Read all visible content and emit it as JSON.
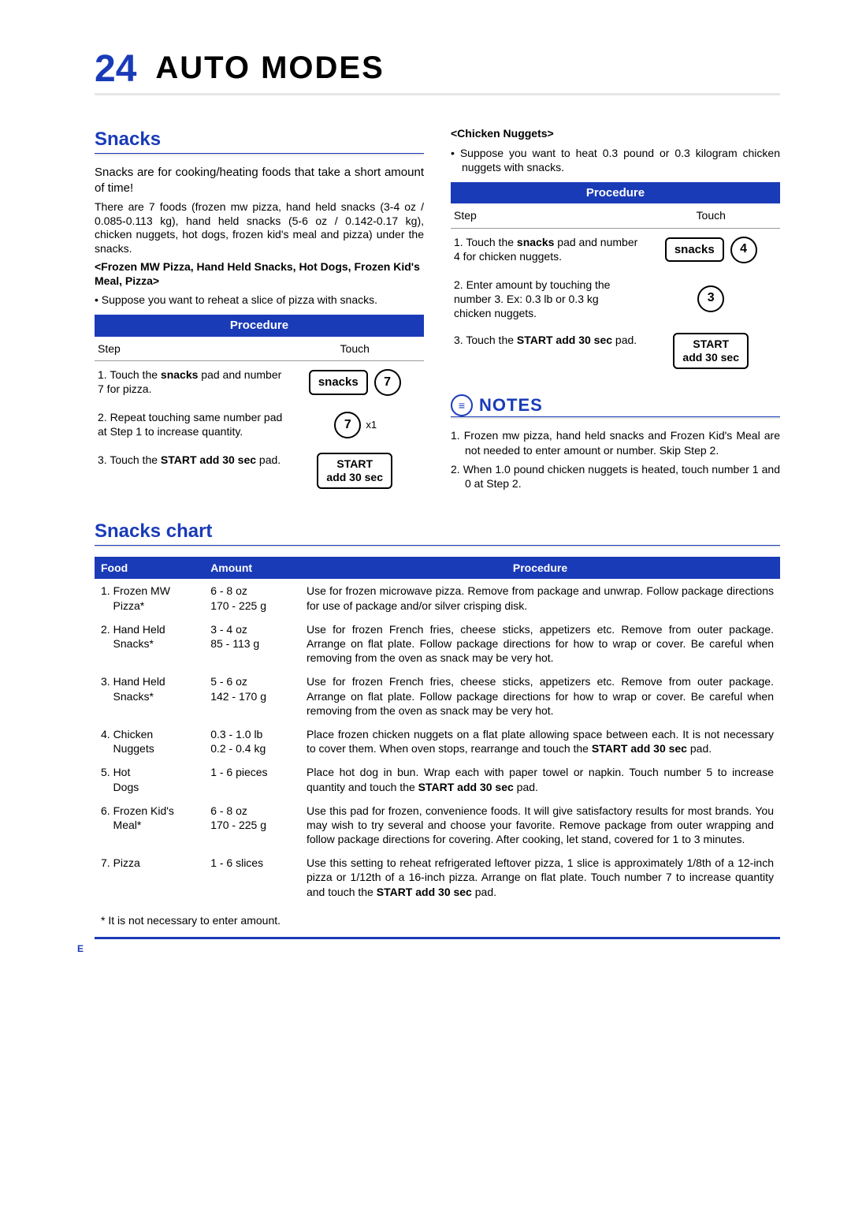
{
  "page": {
    "num": "24",
    "title": "AUTO MODES",
    "side_marker": "E"
  },
  "snacks": {
    "heading": "Snacks",
    "intro1": "Snacks are for cooking/heating foods that take a short amount of time!",
    "intro2": "There are 7 foods (frozen mw pizza, hand held snacks (3-4 oz / 0.085-0.113 kg), hand held snacks (5-6 oz / 0.142-0.17 kg), chicken nuggets, hot dogs, frozen kid's meal and pizza) under the snacks.",
    "sub1": "<Frozen MW Pizza, Hand Held Snacks, Hot Dogs, Frozen Kid's Meal, Pizza>",
    "bullet1": "Suppose you want to reheat a slice of pizza with snacks.",
    "proc_label": "Procedure",
    "step_label": "Step",
    "touch_label": "Touch",
    "p1": {
      "s1_pre": "1. Touch the ",
      "s1_b": "snacks",
      "s1_post": " pad and number 7 for pizza.",
      "btn1": "snacks",
      "num1": "7",
      "s2": "2. Repeat touching same number pad at Step 1 to increase quantity.",
      "num2": "7",
      "x1": "x1",
      "s3_pre": "3. Touch the ",
      "s3_b": "START add 30 sec",
      "s3_post": " pad.",
      "start_l1": "START",
      "start_l2": "add 30 sec"
    },
    "sub2": "<Chicken Nuggets>",
    "bullet2": "Suppose you want to heat 0.3 pound or 0.3 kilogram chicken nuggets with snacks.",
    "p2": {
      "s1_pre": "1. Touch the ",
      "s1_b": "snacks",
      "s1_post": " pad and number 4 for chicken nuggets.",
      "btn1": "snacks",
      "num1": "4",
      "s2": "2. Enter amount by touching the number 3. Ex: 0.3 lb or 0.3 kg chicken nuggets.",
      "num2": "3",
      "s3_pre": "3. Touch the ",
      "s3_b": "START add 30 sec",
      "s3_post": " pad.",
      "start_l1": "START",
      "start_l2": "add 30 sec"
    }
  },
  "notes": {
    "heading": "NOTES",
    "n1": "1. Frozen mw pizza, hand held snacks and Frozen Kid's Meal are not needed to enter amount or number. Skip Step 2.",
    "n2": "2. When 1.0 pound chicken nuggets is heated, touch number 1 and 0 at Step 2."
  },
  "chart": {
    "heading": "Snacks chart",
    "cols": {
      "c1": "Food",
      "c2": "Amount",
      "c3": "Procedure"
    },
    "rows": [
      {
        "food": "1. Frozen MW Pizza*",
        "amt": "6 - 8 oz\n170 - 225 g",
        "proc": "Use for frozen microwave pizza. Remove from package and unwrap. Follow package directions for use of package and/or silver crisping disk."
      },
      {
        "food": "2. Hand Held Snacks*",
        "amt": "3 - 4 oz\n85 - 113 g",
        "proc": "Use for frozen French fries, cheese sticks, appetizers etc. Remove from outer package. Arrange on flat plate. Follow package directions for how to wrap or cover. Be careful when removing from the oven as snack may be very hot."
      },
      {
        "food": "3. Hand Held Snacks*",
        "amt": "5 - 6 oz\n142 - 170 g",
        "proc": "Use for frozen French fries, cheese sticks, appetizers etc. Remove from outer package. Arrange on flat plate. Follow package directions for how to wrap or cover. Be careful when removing from the oven as snack may be very hot."
      },
      {
        "food": "4. Chicken Nuggets",
        "amt": "0.3 - 1.0 lb\n0.2 - 0.4 kg",
        "proc_pre": "Place frozen chicken nuggets on a flat plate allowing space between each. It is not necessary to cover them. When oven stops, rearrange and touch the ",
        "proc_b": "START add 30 sec",
        "proc_post": " pad."
      },
      {
        "food": "5. Hot Dogs",
        "amt": "1 - 6 pieces",
        "proc_pre": "Place hot dog in bun. Wrap each with paper towel or napkin. Touch number 5 to increase quantity and touch the ",
        "proc_b": "START add 30 sec",
        "proc_post": " pad."
      },
      {
        "food": "6. Frozen Kid's Meal*",
        "amt": "6 - 8 oz\n170 - 225 g",
        "proc": "Use this pad for frozen, convenience foods. It will give satisfactory results for most brands. You may wish to try several and choose your favorite. Remove package from outer wrapping and follow package directions for covering. After cooking, let stand, covered for 1 to 3 minutes."
      },
      {
        "food": "7. Pizza",
        "amt": "1 - 6 slices",
        "proc_pre": "Use this setting to reheat refrigerated leftover pizza, 1 slice is approximately 1/8th of a 12-inch pizza or 1/12th of a 16-inch pizza. Arrange on flat plate. Touch number 7 to increase quantity and touch the ",
        "proc_b": "START add 30 sec",
        "proc_post": " pad."
      }
    ],
    "footnote": "* It is not necessary to enter amount."
  }
}
